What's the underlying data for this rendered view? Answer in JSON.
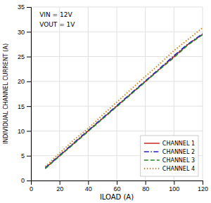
{
  "chart_data": {
    "type": "line",
    "x_label": "ILOAD (A)",
    "y_label": "INDIVIDUAL CHANNEL CURRENT (A)",
    "annotations": [
      "VIN = 12V",
      "VOUT = 1V"
    ],
    "x": [
      10,
      20,
      30,
      40,
      50,
      60,
      70,
      80,
      90,
      100,
      110,
      120
    ],
    "series": [
      {
        "name": "CHANNEL 1",
        "color": "#cc2222",
        "line_style": "solid",
        "values": [
          2.5,
          5.0,
          7.5,
          10.0,
          12.5,
          15.0,
          17.5,
          20.0,
          22.5,
          25.0,
          27.5,
          29.5
        ]
      },
      {
        "name": "CHANNEL 2",
        "color": "#2222cc",
        "line_style": "dashdot",
        "values": [
          2.6,
          5.1,
          7.6,
          10.1,
          12.6,
          15.1,
          17.6,
          20.1,
          22.6,
          25.2,
          27.6,
          29.6
        ]
      },
      {
        "name": "CHANNEL 3",
        "color": "#228822",
        "line_style": "dashed",
        "values": [
          2.4,
          4.9,
          7.4,
          9.9,
          12.4,
          14.9,
          17.4,
          19.9,
          22.4,
          24.8,
          27.4,
          29.4
        ]
      },
      {
        "name": "CHANNEL 4",
        "color": "#cc8822",
        "line_style": "dotted",
        "values": [
          2.8,
          5.5,
          8.2,
          10.5,
          13.2,
          15.8,
          18.4,
          21.0,
          23.5,
          26.2,
          28.5,
          30.8
        ]
      }
    ],
    "xlim": [
      0,
      120
    ],
    "ylim": [
      0,
      35
    ],
    "xticks": [
      0,
      20,
      40,
      60,
      80,
      100,
      120
    ],
    "yticks": [
      0,
      5,
      10,
      15,
      20,
      25,
      30,
      35
    ],
    "grid": true,
    "legend": "lower right"
  }
}
